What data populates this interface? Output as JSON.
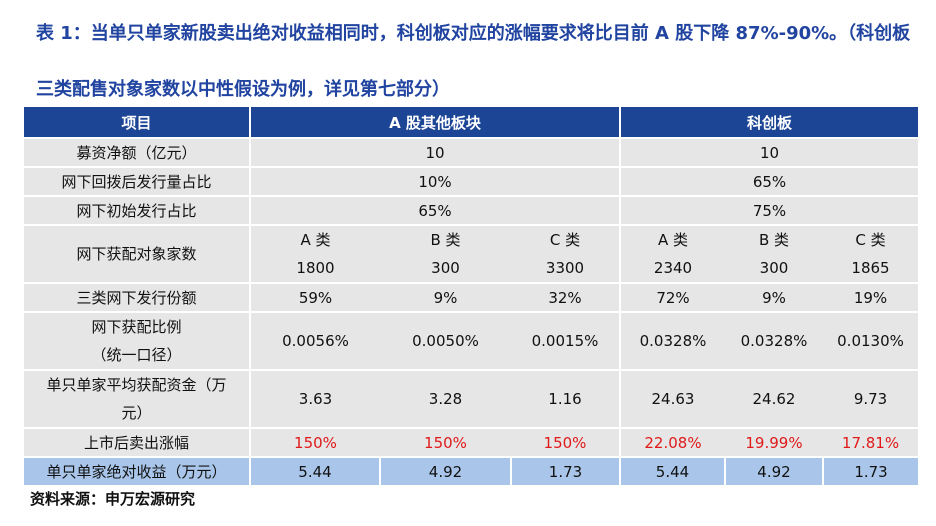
{
  "title": "表 1：当单只单家新股卖出绝对收益相同时，科创板对应的涨幅要求将比目前 A 股下降 87%-90%。（科创板三类配售对象家数以中性假设为例，详见第七部分）",
  "headers": {
    "item": "项目",
    "a_share": "A 股其他板块",
    "star": "科创板"
  },
  "rows": {
    "raise": {
      "label": "募资净额（亿元）",
      "a": "10",
      "s": "10"
    },
    "ratio": {
      "label": "网下回拨后发行量占比",
      "a": "10%",
      "s": "65%"
    },
    "initial": {
      "label": "网下初始发行占比",
      "a": "65%",
      "s": "75%"
    },
    "count": {
      "label": "网下获配对象家数",
      "classes": [
        "A 类",
        "B 类",
        "C 类",
        "A 类",
        "B 类",
        "C 类"
      ],
      "values": [
        "1800",
        "300",
        "3300",
        "2340",
        "300",
        "1865"
      ]
    },
    "share": {
      "label": "三类网下发行份额",
      "values": [
        "59%",
        "9%",
        "32%",
        "72%",
        "9%",
        "19%"
      ]
    },
    "alloc": {
      "label1": "网下获配比例",
      "label2": "（统一口径）",
      "values": [
        "0.0056%",
        "0.0050%",
        "0.0015%",
        "0.0328%",
        "0.0328%",
        "0.0130%"
      ]
    },
    "fund": {
      "label1": "单只单家平均获配资金（万",
      "label2": "元）",
      "values": [
        "3.63",
        "3.28",
        "1.16",
        "24.63",
        "24.62",
        "9.73"
      ]
    },
    "rise": {
      "label": "上市后卖出涨幅",
      "values": [
        "150%",
        "150%",
        "150%",
        "22.08%",
        "19.99%",
        "17.81%"
      ]
    },
    "gain": {
      "label": "单只单家绝对收益（万元）",
      "values": [
        "5.44",
        "4.92",
        "1.73",
        "5.44",
        "4.92",
        "1.73"
      ]
    }
  },
  "source": "资料来源：申万宏源研究",
  "colors": {
    "header_bg": "#1c4596",
    "row_bg": "#e6e6e6",
    "total_bg": "#a9c6ea",
    "red": "#e01919",
    "title": "#2144a0"
  }
}
